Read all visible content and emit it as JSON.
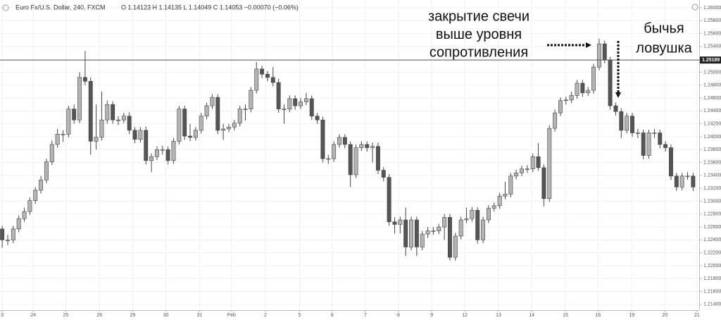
{
  "chart_data": {
    "type": "candlestick",
    "symbol": "Euro Fx/U.S. Dollar, 240, FXCM",
    "quote": "O 1.14123  H 1.14135  L 1.14049  C 1.14053  −0.00070 (−0.06%)",
    "up_color": "#b4b4b4",
    "down_color": "#555555",
    "grid": true,
    "ylim": [
      1.21311,
      1.2612
    ],
    "xlim": [
      -0.4,
      126.1
    ],
    "yticks": [
      {
        "value": 1.26,
        "label": "1.26000"
      },
      {
        "value": 1.258,
        "label": "1.25800"
      },
      {
        "value": 1.256,
        "label": "1.25600"
      },
      {
        "value": 1.254,
        "label": "1.25400"
      },
      {
        "value": 1.25,
        "label": "1.25000"
      },
      {
        "value": 1.248,
        "label": "1.24800"
      },
      {
        "value": 1.246,
        "label": "1.24600"
      },
      {
        "value": 1.244,
        "label": "1.24400"
      },
      {
        "value": 1.242,
        "label": "1.24200"
      },
      {
        "value": 1.24,
        "label": "1.24000"
      },
      {
        "value": 1.238,
        "label": "1.23800"
      },
      {
        "value": 1.236,
        "label": "1.23600"
      },
      {
        "value": 1.234,
        "label": "1.23400"
      },
      {
        "value": 1.232,
        "label": "1.23200"
      },
      {
        "value": 1.23,
        "label": "1.23000"
      },
      {
        "value": 1.228,
        "label": "1.22800"
      },
      {
        "value": 1.226,
        "label": "1.22600"
      },
      {
        "value": 1.224,
        "label": "1.22400"
      },
      {
        "value": 1.222,
        "label": "1.22200"
      },
      {
        "value": 1.22,
        "label": "1.22000"
      },
      {
        "value": 1.218,
        "label": "1.21800"
      },
      {
        "value": 1.216,
        "label": "1.21600"
      },
      {
        "value": 1.214,
        "label": "1.21400"
      }
    ],
    "xticks": [
      {
        "value": 0,
        "label": "3"
      },
      {
        "value": 5.6,
        "label": "24"
      },
      {
        "value": 11.5,
        "label": "25"
      },
      {
        "value": 17.6,
        "label": "26"
      },
      {
        "value": 23.6,
        "label": "29"
      },
      {
        "value": 29.6,
        "label": "30"
      },
      {
        "value": 35.7,
        "label": "31"
      },
      {
        "value": 41.5,
        "label": "Feb"
      },
      {
        "value": 47.6,
        "label": "2"
      },
      {
        "value": 53.8,
        "label": "5"
      },
      {
        "value": 59.7,
        "label": "6"
      },
      {
        "value": 65.7,
        "label": "7"
      },
      {
        "value": 71.7,
        "label": "8"
      },
      {
        "value": 77.7,
        "label": "9"
      },
      {
        "value": 83.7,
        "label": "12"
      },
      {
        "value": 89.8,
        "label": "13"
      },
      {
        "value": 95.8,
        "label": "14"
      },
      {
        "value": 101.9,
        "label": "15"
      },
      {
        "value": 107.8,
        "label": "16"
      },
      {
        "value": 113.9,
        "label": "19"
      },
      {
        "value": 119.9,
        "label": "20"
      },
      {
        "value": 125.7,
        "label": "21"
      }
    ],
    "level": {
      "value": 1.25189,
      "label": "1.25189"
    },
    "annotations": [
      {
        "lines": [
          "закрытие свечи",
          "выше уровня",
          "сопротивления"
        ]
      },
      {
        "lines": [
          "бычья",
          "ловушка"
        ]
      }
    ],
    "open": [
      1.2257,
      1.224,
      1.224,
      1.2257,
      1.2273,
      1.2284,
      1.2301,
      1.2317,
      1.2333,
      1.2361,
      1.2388,
      1.2404,
      1.2404,
      1.2443,
      1.2426,
      1.2492,
      1.2486,
      1.2393,
      1.2399,
      1.2426,
      1.245,
      1.2426,
      1.2426,
      1.2432,
      1.241,
      1.2396,
      1.241,
      1.2363,
      1.2369,
      1.238,
      1.238,
      1.2363,
      1.2393,
      1.2443,
      1.2401,
      1.2399,
      1.241,
      1.2432,
      1.2448,
      1.2461,
      1.241,
      1.2412,
      1.2415,
      1.2421,
      1.2443,
      1.2443,
      1.2472,
      1.2505,
      1.2497,
      1.2492,
      1.2484,
      1.2443,
      1.2443,
      1.2459,
      1.2448,
      1.2454,
      1.2459,
      1.2432,
      1.2426,
      1.2366,
      1.2366,
      1.2388,
      1.2399,
      1.2388,
      1.2341,
      1.2383,
      1.2388,
      1.2383,
      1.2385,
      1.2348,
      1.2337,
      1.2268,
      1.2264,
      1.2271,
      1.2229,
      1.2271,
      1.2229,
      1.2249,
      1.2254,
      1.2254,
      1.226,
      1.2275,
      1.2213,
      1.2246,
      1.2271,
      1.2273,
      1.2286,
      1.224,
      1.2271,
      1.2289,
      1.2293,
      1.2308,
      1.2311,
      1.2339,
      1.2344,
      1.235,
      1.235,
      1.2369,
      1.2352,
      1.2304,
      1.2413,
      1.2437,
      1.2456,
      1.2457,
      1.2464,
      1.2483,
      1.2468,
      1.2472,
      1.2508,
      1.2544,
      1.2519,
      1.2448,
      1.2439,
      1.241,
      1.2432,
      1.2406,
      1.2406,
      1.2371,
      1.2406,
      1.2406,
      1.2388,
      1.2383,
      1.2339,
      1.2322,
      1.2339,
      1.2339
    ],
    "close": [
      1.224,
      1.224,
      1.2257,
      1.2273,
      1.2284,
      1.2301,
      1.2317,
      1.2333,
      1.2361,
      1.2388,
      1.2404,
      1.2404,
      1.2443,
      1.2426,
      1.2492,
      1.2486,
      1.2393,
      1.2399,
      1.2426,
      1.245,
      1.2426,
      1.2426,
      1.2432,
      1.241,
      1.2396,
      1.241,
      1.2363,
      1.2369,
      1.238,
      1.238,
      1.2363,
      1.2393,
      1.2443,
      1.2401,
      1.2399,
      1.241,
      1.2432,
      1.2448,
      1.2461,
      1.241,
      1.2412,
      1.2415,
      1.2421,
      1.2443,
      1.2443,
      1.2472,
      1.2505,
      1.2497,
      1.2492,
      1.2484,
      1.2443,
      1.2443,
      1.2459,
      1.2448,
      1.2454,
      1.2459,
      1.2432,
      1.2426,
      1.2366,
      1.2366,
      1.2388,
      1.2399,
      1.2388,
      1.2341,
      1.2383,
      1.2388,
      1.2383,
      1.2385,
      1.2348,
      1.2337,
      1.2268,
      1.2264,
      1.2271,
      1.2229,
      1.2271,
      1.2229,
      1.2249,
      1.2254,
      1.2254,
      1.226,
      1.2275,
      1.2213,
      1.2246,
      1.2271,
      1.2273,
      1.2286,
      1.224,
      1.2271,
      1.2289,
      1.2293,
      1.2308,
      1.2311,
      1.2339,
      1.2344,
      1.235,
      1.235,
      1.2369,
      1.2352,
      1.2304,
      1.2413,
      1.2437,
      1.2456,
      1.2457,
      1.2464,
      1.2483,
      1.2468,
      1.2472,
      1.2508,
      1.2544,
      1.2519,
      1.2448,
      1.2439,
      1.241,
      1.2432,
      1.2406,
      1.2406,
      1.2371,
      1.2406,
      1.2406,
      1.2388,
      1.2383,
      1.2339,
      1.2322,
      1.2339,
      1.2339,
      1.2322
    ],
    "high": [
      1.2262,
      1.2248,
      1.2262,
      1.2278,
      1.229,
      1.2306,
      1.2322,
      1.2339,
      1.2366,
      1.2394,
      1.2412,
      1.241,
      1.2448,
      1.245,
      1.25,
      1.2533,
      1.2492,
      1.245,
      1.247,
      1.2456,
      1.2455,
      1.2432,
      1.2437,
      1.2438,
      1.2415,
      1.2415,
      1.2416,
      1.2374,
      1.2385,
      1.2386,
      1.2385,
      1.2398,
      1.2448,
      1.2448,
      1.242,
      1.2415,
      1.2437,
      1.2453,
      1.2466,
      1.2466,
      1.242,
      1.242,
      1.2426,
      1.2448,
      1.245,
      1.2477,
      1.2516,
      1.251,
      1.2502,
      1.2508,
      1.249,
      1.245,
      1.2464,
      1.2464,
      1.246,
      1.2468,
      1.2464,
      1.2437,
      1.2431,
      1.2372,
      1.2393,
      1.2404,
      1.2404,
      1.2393,
      1.2388,
      1.2393,
      1.2393,
      1.2391,
      1.2391,
      1.2353,
      1.2342,
      1.2275,
      1.2276,
      1.229,
      1.2276,
      1.2276,
      1.2254,
      1.226,
      1.226,
      1.2265,
      1.228,
      1.228,
      1.2251,
      1.2276,
      1.229,
      1.2291,
      1.2291,
      1.2276,
      1.2294,
      1.2298,
      1.2313,
      1.233,
      1.2344,
      1.2349,
      1.2355,
      1.2356,
      1.2374,
      1.239,
      1.2357,
      1.2418,
      1.2442,
      1.2461,
      1.2462,
      1.247,
      1.2488,
      1.2488,
      1.2477,
      1.2513,
      1.2552,
      1.2549,
      1.2524,
      1.2453,
      1.2444,
      1.2437,
      1.2437,
      1.2412,
      1.2411,
      1.2411,
      1.2412,
      1.2411,
      1.2393,
      1.2388,
      1.2344,
      1.2344,
      1.2345,
      1.2344
    ],
    "low": [
      1.2228,
      1.2232,
      1.2235,
      1.2252,
      1.2268,
      1.2279,
      1.2296,
      1.2312,
      1.2328,
      1.2356,
      1.2383,
      1.2392,
      1.2399,
      1.242,
      1.2421,
      1.248,
      1.2372,
      1.238,
      1.2394,
      1.242,
      1.242,
      1.2418,
      1.2421,
      1.2404,
      1.239,
      1.2391,
      1.2357,
      1.2345,
      1.2364,
      1.2372,
      1.2357,
      1.2358,
      1.2388,
      1.2395,
      1.2393,
      1.2394,
      1.2405,
      1.2427,
      1.2443,
      1.2404,
      1.2395,
      1.2407,
      1.241,
      1.2416,
      1.2425,
      1.2438,
      1.2467,
      1.2491,
      1.2486,
      1.2478,
      1.2437,
      1.242,
      1.2438,
      1.2442,
      1.2443,
      1.2449,
      1.2426,
      1.242,
      1.236,
      1.2358,
      1.2361,
      1.2383,
      1.2382,
      1.2322,
      1.2336,
      1.2378,
      1.2377,
      1.236,
      1.2342,
      1.2331,
      1.2262,
      1.225,
      1.225,
      1.2215,
      1.2224,
      1.2215,
      1.2224,
      1.2243,
      1.2248,
      1.2249,
      1.224,
      1.2208,
      1.2208,
      1.2241,
      1.2266,
      1.2268,
      1.2234,
      1.2235,
      1.2266,
      1.2284,
      1.2288,
      1.2303,
      1.2306,
      1.2334,
      1.2339,
      1.2344,
      1.2345,
      1.2347,
      1.2292,
      1.2299,
      1.2408,
      1.2432,
      1.245,
      1.2452,
      1.2459,
      1.2462,
      1.2463,
      1.2467,
      1.2503,
      1.2514,
      1.2442,
      1.2433,
      1.2398,
      1.2405,
      1.24,
      1.2398,
      1.2365,
      1.2366,
      1.2398,
      1.2382,
      1.2377,
      1.2333,
      1.2316,
      1.2317,
      1.2333,
      1.2316
    ]
  }
}
